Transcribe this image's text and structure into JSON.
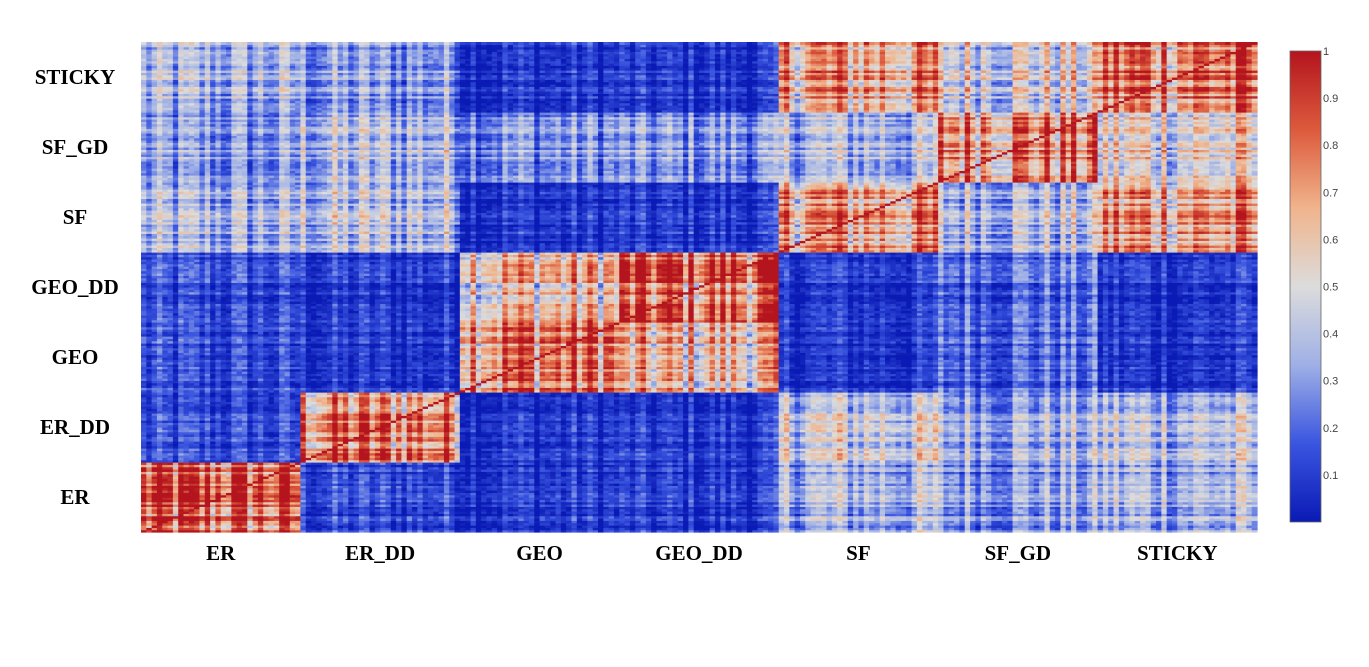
{
  "chart_data": {
    "type": "heatmap",
    "title": "",
    "xlabel": "",
    "ylabel": "",
    "x_categories": [
      "ER",
      "ER_DD",
      "GEO",
      "GEO_DD",
      "SF",
      "SF_GD",
      "STICKY"
    ],
    "y_categories": [
      "ER",
      "ER_DD",
      "GEO",
      "GEO_DD",
      "SF",
      "SF_GD",
      "STICKY"
    ],
    "samples_per_category": 30,
    "block_mean_similarity": [
      [
        0.8,
        0.12,
        0.08,
        0.08,
        0.35,
        0.3,
        0.35
      ],
      [
        0.12,
        0.75,
        0.08,
        0.08,
        0.45,
        0.35,
        0.4
      ],
      [
        0.12,
        0.08,
        0.78,
        0.6,
        0.08,
        0.2,
        0.08
      ],
      [
        0.12,
        0.08,
        0.6,
        0.8,
        0.08,
        0.2,
        0.08
      ],
      [
        0.35,
        0.4,
        0.08,
        0.08,
        0.7,
        0.4,
        0.7
      ],
      [
        0.3,
        0.4,
        0.3,
        0.3,
        0.4,
        0.8,
        0.55
      ],
      [
        0.35,
        0.3,
        0.08,
        0.08,
        0.7,
        0.5,
        0.8
      ]
    ],
    "colorscale": [
      "#0a1ab4",
      "#3a55e0",
      "#9fb0e6",
      "#dcdcdc",
      "#f0b48c",
      "#dc5a3c",
      "#b4141e"
    ],
    "zmin": 0,
    "zmax": 1,
    "colorbar_ticks": [
      "1",
      "0.9",
      "0.8",
      "0.7",
      "0.6",
      "0.5",
      "0.4",
      "0.3",
      "0.2",
      "0.1"
    ],
    "colorbar_tick_values": [
      1,
      0.9,
      0.8,
      0.7,
      0.6,
      0.5,
      0.4,
      0.3,
      0.2,
      0.1
    ],
    "legend_position": "right"
  }
}
